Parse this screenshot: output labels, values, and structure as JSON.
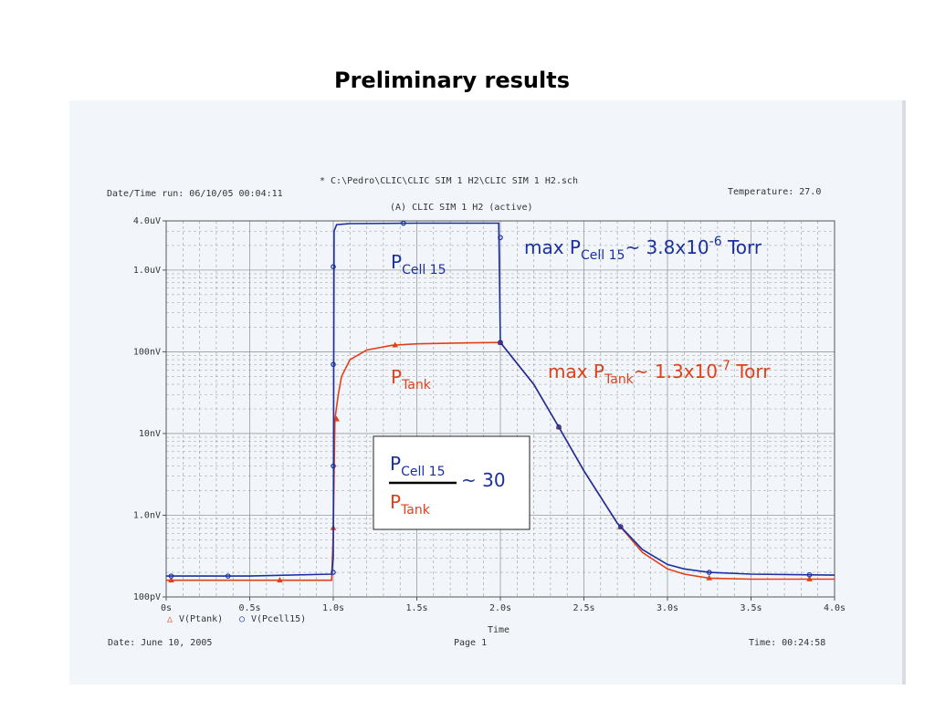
{
  "slide_title": "Preliminary results",
  "colors": {
    "ptank": "#e0401a",
    "pcell": "#1a30a0",
    "grid": "#9a9a9a",
    "background": "#f2f6fb"
  },
  "header": {
    "schematic_path": "* C:\\Pedro\\CLIC\\CLIC SIM 1 H2\\CLIC SIM 1 H2.sch",
    "datetime_run": "Date/Time run: 06/10/05 00:04:11",
    "temperature": "Temperature: 27.0",
    "plot_title": "(A) CLIC SIM 1 H2 (active)"
  },
  "footer": {
    "date": "Date: June 10, 2005",
    "page": "Page 1",
    "time": "Time: 00:24:58"
  },
  "annotations": {
    "pcell_label": {
      "main": "P",
      "sub": "Cell 15"
    },
    "ptank_label": {
      "main": "P",
      "sub": "Tank"
    },
    "max_pcell": {
      "pre": "max P",
      "sub": "Cell 15",
      "mid": "~ 3.8x10",
      "sup": "-6",
      "post": " Torr"
    },
    "max_ptank": {
      "pre": "max P",
      "sub": "Tank",
      "mid": "~ 1.3x10",
      "sup": "-7",
      "post": " Torr"
    },
    "ratio": {
      "num_main": "P",
      "num_sub": "Cell 15",
      "den_main": "P",
      "den_sub": "Tank",
      "value": "~ 30"
    }
  },
  "chart_data": {
    "type": "line",
    "xlabel": "Time",
    "ylabel": "",
    "xlim": [
      0,
      4.0
    ],
    "ylim": [
      1e-10,
      4e-06
    ],
    "yscale": "log",
    "grid": true,
    "x_ticks": [
      {
        "v": 0,
        "label": "0s"
      },
      {
        "v": 0.5,
        "label": "0.5s"
      },
      {
        "v": 1.0,
        "label": "1.0s"
      },
      {
        "v": 1.5,
        "label": "1.5s"
      },
      {
        "v": 2.0,
        "label": "2.0s"
      },
      {
        "v": 2.5,
        "label": "2.5s"
      },
      {
        "v": 3.0,
        "label": "3.0s"
      },
      {
        "v": 3.5,
        "label": "3.5s"
      },
      {
        "v": 4.0,
        "label": "4.0s"
      }
    ],
    "y_ticks": [
      {
        "v": 4e-06,
        "label": "4.0uV"
      },
      {
        "v": 1e-06,
        "label": "1.0uV"
      },
      {
        "v": 1e-07,
        "label": "100nV"
      },
      {
        "v": 1e-08,
        "label": "10nV"
      },
      {
        "v": 1e-09,
        "label": "1.0nV"
      },
      {
        "v": 1e-10,
        "label": "100pV"
      }
    ],
    "legend": [
      {
        "marker": "△",
        "name": "V(Ptank)"
      },
      {
        "marker": "○",
        "name": "V(Pcell15)"
      }
    ],
    "legend_position": "bottom-left",
    "series": [
      {
        "name": "V(Ptank)",
        "marker": "triangle",
        "x": [
          0,
          0.5,
          0.99,
          1.0,
          1.01,
          1.03,
          1.05,
          1.1,
          1.2,
          1.35,
          1.5,
          1.75,
          2.0,
          2.2,
          2.35,
          2.5,
          2.7,
          2.85,
          3.0,
          3.1,
          3.25,
          3.5,
          4.0
        ],
        "y": [
          1.6e-10,
          1.6e-10,
          1.6e-10,
          6e-10,
          1.5e-08,
          3e-08,
          5e-08,
          8e-08,
          1.05e-07,
          1.2e-07,
          1.25e-07,
          1.28e-07,
          1.3e-07,
          4e-08,
          1.2e-08,
          3.5e-09,
          8e-10,
          3.5e-10,
          2.2e-10,
          1.9e-10,
          1.7e-10,
          1.65e-10,
          1.65e-10
        ],
        "markers_x": [
          0.03,
          0.68,
          1.0,
          1.02,
          1.37,
          2.0,
          2.35,
          2.72,
          3.25,
          3.85
        ]
      },
      {
        "name": "V(Pcell15)",
        "marker": "circle",
        "x": [
          0,
          0.5,
          0.99,
          1.0,
          1.005,
          1.02,
          1.1,
          1.5,
          1.99,
          2.0,
          2.2,
          2.35,
          2.5,
          2.7,
          2.85,
          3.0,
          3.1,
          3.25,
          3.5,
          4.0
        ],
        "y": [
          1.8e-10,
          1.8e-10,
          1.9e-10,
          3e-10,
          3e-06,
          3.6e-06,
          3.7e-06,
          3.75e-06,
          3.75e-06,
          1.3e-07,
          4e-08,
          1.2e-08,
          3.5e-09,
          8e-10,
          3.8e-10,
          2.5e-10,
          2.2e-10,
          2e-10,
          1.9e-10,
          1.85e-10
        ],
        "markers_x": [
          0.03,
          0.37,
          1.0,
          1.0,
          1.0,
          1.0,
          1.42,
          2.0,
          2.0,
          2.35,
          2.72,
          3.25,
          3.85
        ]
      }
    ]
  }
}
